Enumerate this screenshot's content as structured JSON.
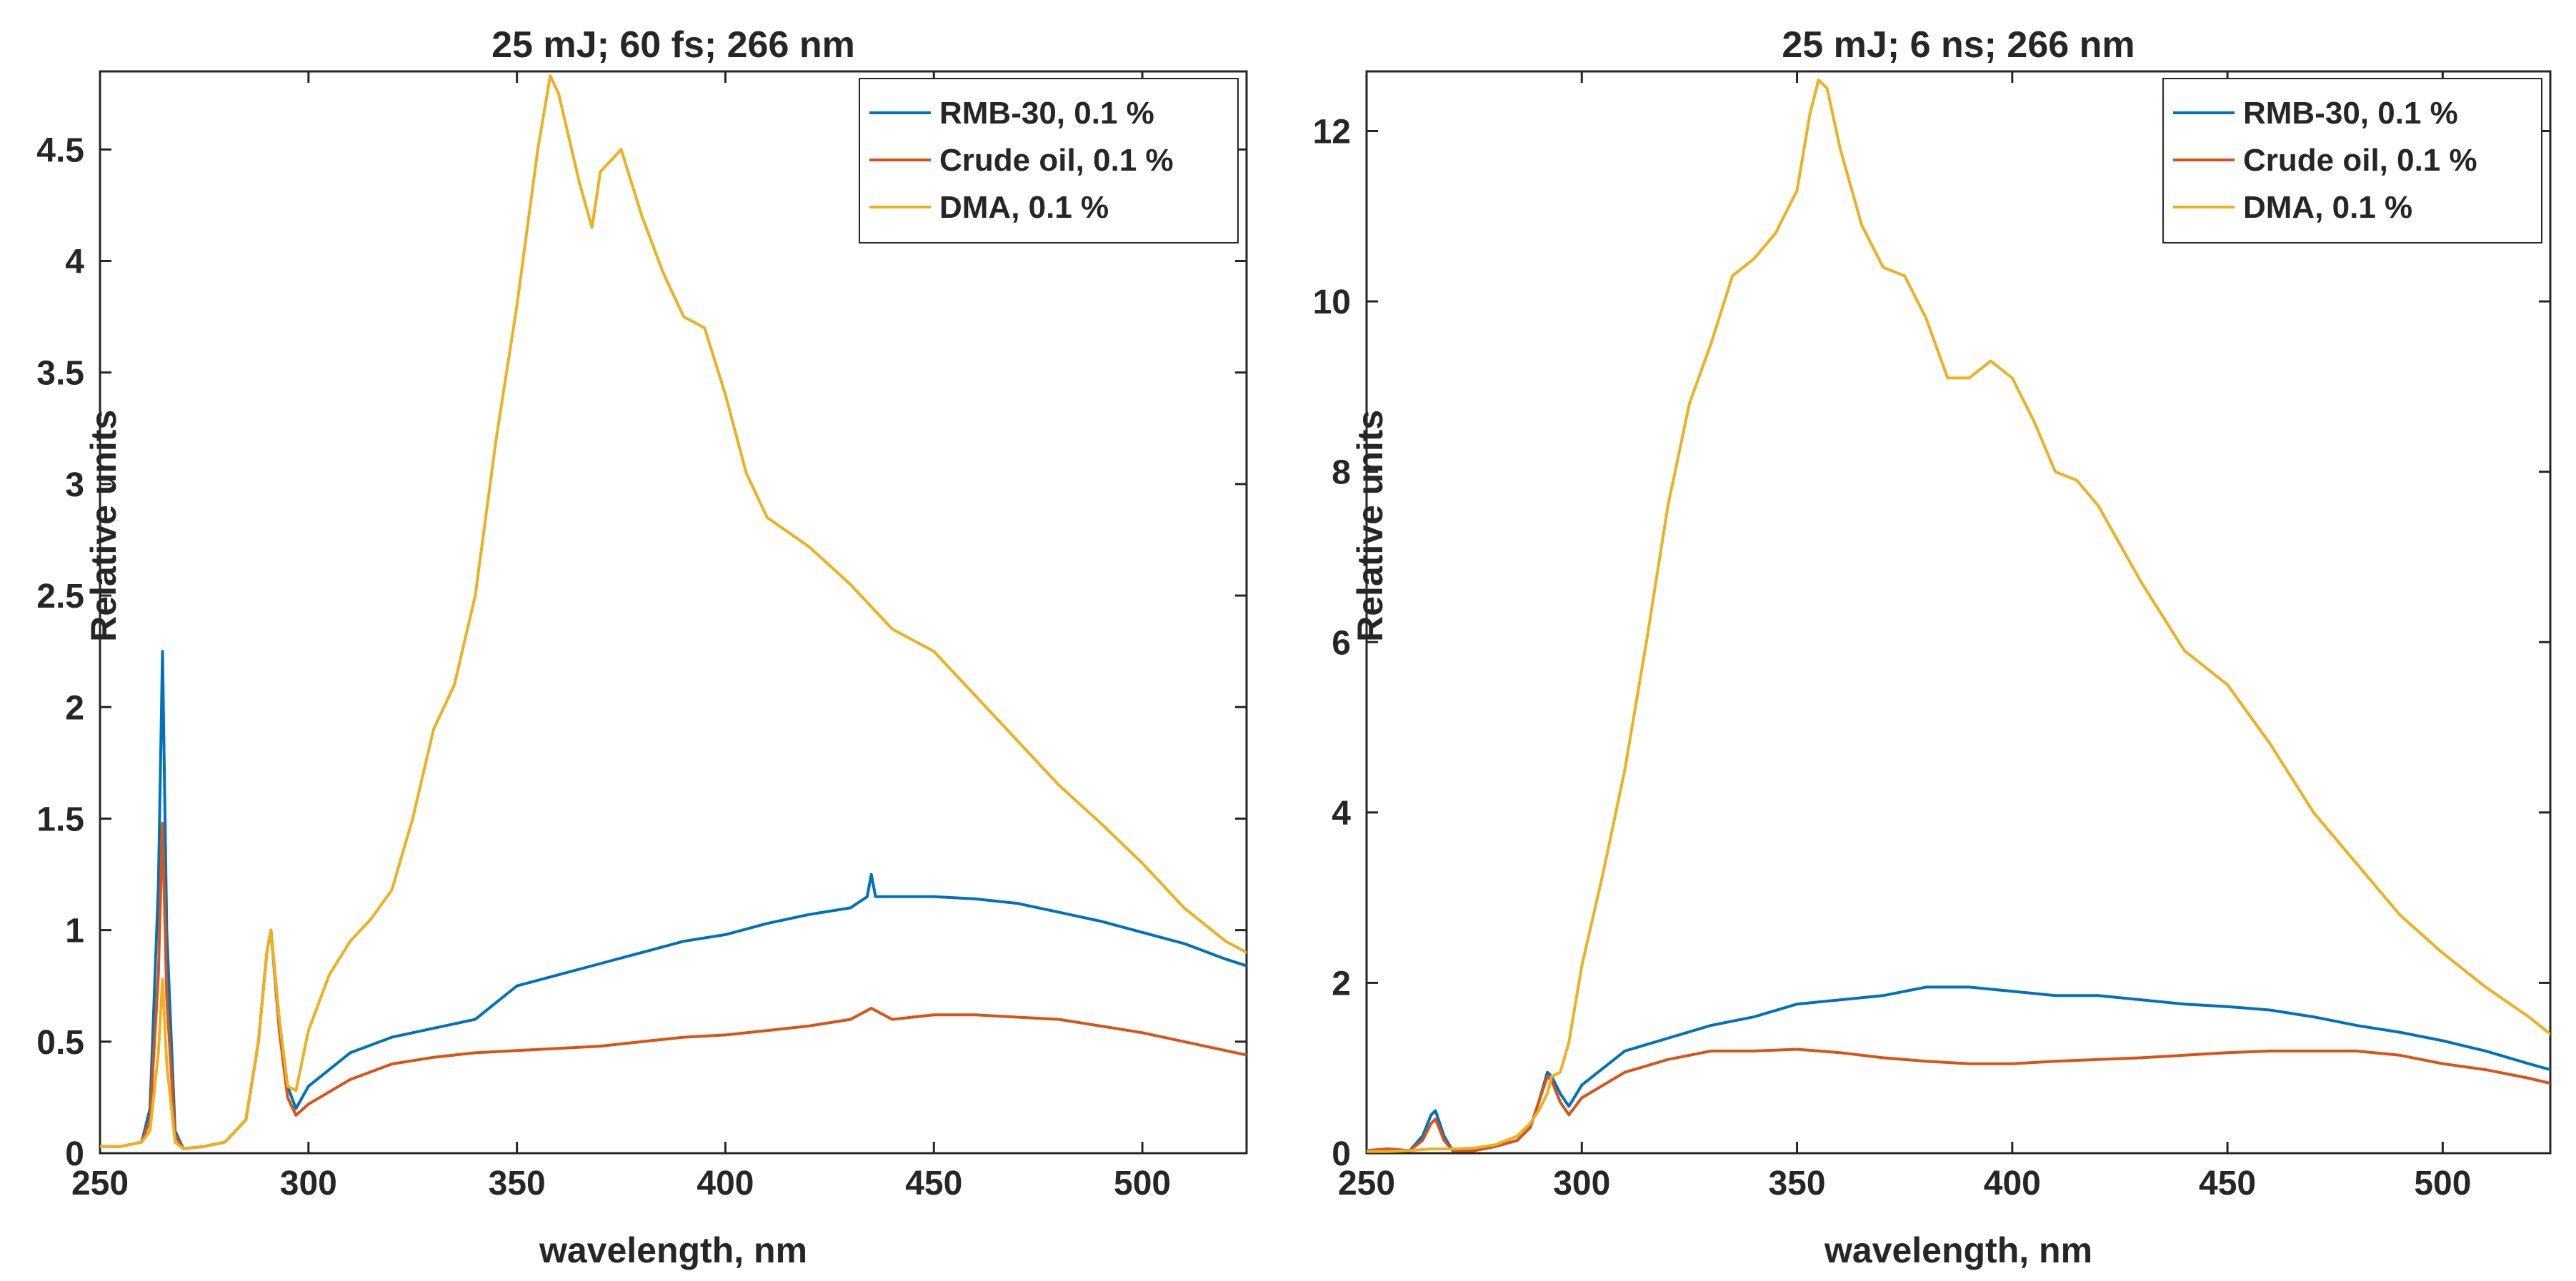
{
  "chart_data": [
    {
      "type": "line",
      "title": "25 mJ; 60 fs; 266 nm",
      "xlabel": "wavelength, nm",
      "ylabel": "Relative units",
      "xlim": [
        250,
        525
      ],
      "ylim": [
        0,
        4.85
      ],
      "xticks": [
        250,
        300,
        350,
        400,
        450,
        500
      ],
      "yticks": [
        0,
        0.5,
        1,
        1.5,
        2,
        2.5,
        3,
        3.5,
        4,
        4.5
      ],
      "xtick_labels": [
        "250",
        "300",
        "350",
        "400",
        "450",
        "500"
      ],
      "ytick_labels": [
        "0",
        "0.5",
        "1",
        "1.5",
        "2",
        "2.5",
        "3",
        "3.5",
        "4",
        "4.5"
      ],
      "legend_position": "top-right",
      "series": [
        {
          "name": "RMB-30, 0.1 %",
          "color": "#0072BD",
          "x": [
            250,
            255,
            260,
            262,
            264,
            265,
            266,
            268,
            270,
            275,
            280,
            285,
            288,
            290,
            291,
            293,
            295,
            297,
            300,
            310,
            320,
            330,
            340,
            350,
            360,
            370,
            380,
            390,
            400,
            410,
            420,
            430,
            434,
            435,
            436,
            440,
            450,
            460,
            470,
            480,
            490,
            500,
            510,
            520,
            525
          ],
          "values": [
            0.03,
            0.03,
            0.05,
            0.2,
            1.2,
            2.25,
            1.0,
            0.1,
            0.02,
            0.03,
            0.05,
            0.15,
            0.5,
            0.9,
            1.0,
            0.6,
            0.3,
            0.2,
            0.3,
            0.45,
            0.52,
            0.56,
            0.6,
            0.75,
            0.8,
            0.85,
            0.9,
            0.95,
            0.98,
            1.03,
            1.07,
            1.1,
            1.15,
            1.25,
            1.15,
            1.15,
            1.15,
            1.14,
            1.12,
            1.08,
            1.04,
            0.99,
            0.94,
            0.87,
            0.84
          ]
        },
        {
          "name": "Crude oil, 0.1 %",
          "color": "#D95319",
          "x": [
            250,
            255,
            260,
            262,
            264,
            265,
            266,
            268,
            270,
            275,
            280,
            285,
            288,
            290,
            291,
            293,
            295,
            297,
            300,
            310,
            320,
            330,
            340,
            350,
            360,
            370,
            380,
            390,
            400,
            410,
            420,
            430,
            435,
            440,
            450,
            460,
            470,
            480,
            490,
            500,
            510,
            520,
            525
          ],
          "values": [
            0.03,
            0.03,
            0.05,
            0.15,
            0.8,
            1.48,
            0.7,
            0.08,
            0.02,
            0.03,
            0.05,
            0.15,
            0.5,
            0.9,
            1.0,
            0.55,
            0.25,
            0.17,
            0.22,
            0.33,
            0.4,
            0.43,
            0.45,
            0.46,
            0.47,
            0.48,
            0.5,
            0.52,
            0.53,
            0.55,
            0.57,
            0.6,
            0.65,
            0.6,
            0.62,
            0.62,
            0.61,
            0.6,
            0.57,
            0.54,
            0.5,
            0.46,
            0.44
          ]
        },
        {
          "name": "DMA, 0.1 %",
          "color": "#EDB120",
          "x": [
            250,
            255,
            260,
            262,
            264,
            265,
            266,
            268,
            270,
            275,
            280,
            285,
            288,
            290,
            291,
            293,
            295,
            297,
            300,
            305,
            310,
            315,
            320,
            325,
            330,
            335,
            340,
            345,
            350,
            355,
            358,
            360,
            365,
            368,
            370,
            375,
            380,
            385,
            390,
            395,
            400,
            405,
            410,
            420,
            430,
            440,
            450,
            460,
            470,
            480,
            490,
            500,
            510,
            520,
            525
          ],
          "values": [
            0.03,
            0.03,
            0.05,
            0.1,
            0.45,
            0.78,
            0.4,
            0.05,
            0.02,
            0.03,
            0.05,
            0.15,
            0.5,
            0.9,
            1.0,
            0.6,
            0.3,
            0.28,
            0.55,
            0.8,
            0.95,
            1.05,
            1.18,
            1.5,
            1.9,
            2.1,
            2.5,
            3.2,
            3.8,
            4.5,
            4.83,
            4.75,
            4.35,
            4.15,
            4.4,
            4.5,
            4.2,
            3.95,
            3.75,
            3.7,
            3.4,
            3.05,
            2.85,
            2.72,
            2.55,
            2.35,
            2.25,
            2.05,
            1.85,
            1.65,
            1.48,
            1.3,
            1.1,
            0.95,
            0.9
          ]
        }
      ]
    },
    {
      "type": "line",
      "title": "25 mJ; 6 ns; 266 nm",
      "xlabel": "wavelength, nm",
      "ylabel": "Relative units",
      "xlim": [
        250,
        525
      ],
      "ylim": [
        0,
        12.7
      ],
      "xticks": [
        250,
        300,
        350,
        400,
        450,
        500
      ],
      "yticks": [
        0,
        2,
        4,
        6,
        8,
        10,
        12
      ],
      "xtick_labels": [
        "250",
        "300",
        "350",
        "400",
        "450",
        "500"
      ],
      "ytick_labels": [
        "0",
        "2",
        "4",
        "6",
        "8",
        "10",
        "12"
      ],
      "legend_position": "top-right",
      "series": [
        {
          "name": "RMB-30, 0.1 %",
          "color": "#0072BD",
          "x": [
            250,
            255,
            260,
            263,
            265,
            266,
            268,
            270,
            275,
            280,
            285,
            288,
            290,
            292,
            293,
            295,
            297,
            300,
            310,
            320,
            330,
            340,
            350,
            360,
            370,
            380,
            390,
            400,
            410,
            420,
            430,
            440,
            450,
            460,
            470,
            480,
            490,
            500,
            510,
            520,
            525
          ],
          "values": [
            0.03,
            0.05,
            0.03,
            0.2,
            0.45,
            0.5,
            0.2,
            0.03,
            0.03,
            0.08,
            0.15,
            0.3,
            0.6,
            0.95,
            0.9,
            0.7,
            0.55,
            0.8,
            1.2,
            1.35,
            1.5,
            1.6,
            1.75,
            1.8,
            1.85,
            1.95,
            1.95,
            1.9,
            1.85,
            1.85,
            1.8,
            1.75,
            1.72,
            1.68,
            1.6,
            1.5,
            1.42,
            1.32,
            1.2,
            1.05,
            0.98
          ]
        },
        {
          "name": "Crude oil, 0.1 %",
          "color": "#D95319",
          "x": [
            250,
            255,
            260,
            263,
            265,
            266,
            268,
            270,
            275,
            280,
            285,
            288,
            290,
            292,
            293,
            295,
            297,
            300,
            310,
            320,
            330,
            340,
            350,
            360,
            370,
            380,
            390,
            400,
            410,
            420,
            430,
            440,
            450,
            460,
            470,
            480,
            490,
            500,
            510,
            520,
            525
          ],
          "values": [
            0.03,
            0.05,
            0.03,
            0.15,
            0.35,
            0.4,
            0.15,
            0.03,
            0.03,
            0.08,
            0.15,
            0.3,
            0.6,
            0.9,
            0.85,
            0.6,
            0.45,
            0.65,
            0.95,
            1.1,
            1.2,
            1.2,
            1.22,
            1.18,
            1.12,
            1.08,
            1.05,
            1.05,
            1.08,
            1.1,
            1.12,
            1.15,
            1.18,
            1.2,
            1.2,
            1.2,
            1.15,
            1.05,
            0.98,
            0.88,
            0.82
          ]
        },
        {
          "name": "DMA, 0.1 %",
          "color": "#EDB120",
          "x": [
            250,
            255,
            260,
            265,
            270,
            275,
            280,
            285,
            288,
            290,
            292,
            293,
            295,
            297,
            300,
            305,
            310,
            315,
            320,
            325,
            330,
            335,
            340,
            345,
            350,
            353,
            355,
            357,
            360,
            365,
            370,
            375,
            380,
            385,
            390,
            395,
            400,
            405,
            410,
            415,
            420,
            430,
            440,
            450,
            460,
            470,
            480,
            490,
            500,
            510,
            520,
            525
          ],
          "values": [
            0.02,
            0.02,
            0.03,
            0.05,
            0.05,
            0.06,
            0.1,
            0.2,
            0.35,
            0.5,
            0.7,
            0.9,
            0.95,
            1.3,
            2.2,
            3.3,
            4.5,
            6.0,
            7.6,
            8.8,
            9.5,
            10.3,
            10.5,
            10.8,
            11.3,
            12.2,
            12.6,
            12.5,
            11.8,
            10.9,
            10.4,
            10.3,
            9.8,
            9.1,
            9.1,
            9.3,
            9.1,
            8.6,
            8.0,
            7.9,
            7.6,
            6.7,
            5.9,
            5.5,
            4.8,
            4.0,
            3.4,
            2.8,
            2.35,
            1.95,
            1.6,
            1.4
          ]
        }
      ]
    }
  ]
}
